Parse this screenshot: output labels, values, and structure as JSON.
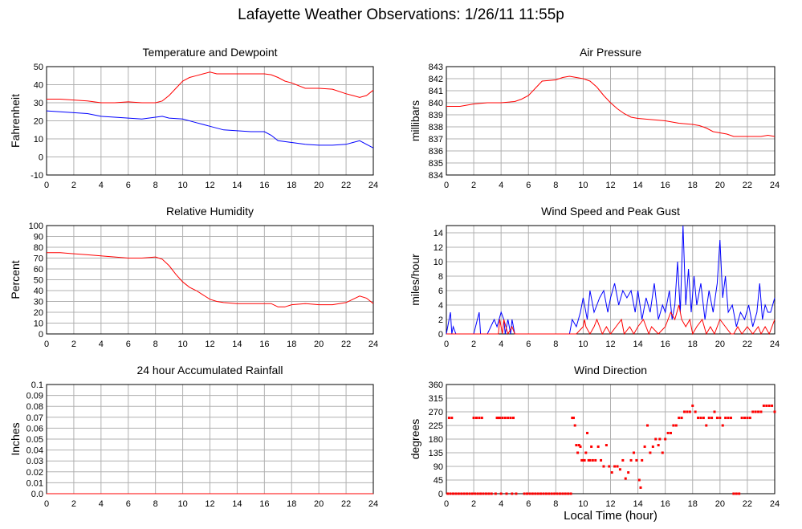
{
  "title": "Lafayette Weather Observations: 1/26/11 11:55p",
  "xlabel": "Local Time (hour)",
  "colors": {
    "red": "#ff0000",
    "blue": "#0000ff",
    "grid": "#b0b0b0"
  },
  "chart_data": [
    {
      "id": "temp",
      "type": "line",
      "title": "Temperature and Dewpoint",
      "ylabel": "Fahrenheit",
      "xlim": [
        0,
        24
      ],
      "ylim": [
        -10,
        50
      ],
      "xticks": [
        0,
        2,
        4,
        6,
        8,
        10,
        12,
        14,
        16,
        18,
        20,
        22,
        24
      ],
      "yticks": [
        -10,
        0,
        10,
        20,
        30,
        40,
        50
      ],
      "grid": true,
      "series": [
        {
          "color": "#ff0000",
          "x": [
            0,
            1,
            2,
            3,
            4,
            5,
            6,
            7,
            8,
            8.5,
            9,
            9.5,
            10,
            10.5,
            11,
            11.5,
            12,
            12.5,
            13,
            14,
            15,
            16,
            16.5,
            17,
            17.5,
            18,
            19,
            20,
            21,
            22,
            22.5,
            23,
            23.5,
            24
          ],
          "y": [
            32,
            32,
            31.5,
            31,
            30,
            30,
            30.5,
            30,
            30,
            31,
            34,
            38,
            42,
            44,
            45,
            46,
            47,
            46,
            46,
            46,
            46,
            46,
            45.5,
            44,
            42,
            41,
            38,
            38,
            37.5,
            35,
            34,
            33,
            34,
            37
          ]
        },
        {
          "color": "#0000ff",
          "x": [
            0,
            1,
            2,
            3,
            4,
            5,
            6,
            7,
            8,
            8.5,
            9,
            10,
            11,
            12,
            13,
            14,
            15,
            16,
            16.5,
            17,
            18,
            19,
            20,
            21,
            22,
            22.5,
            23,
            23.5,
            24
          ],
          "y": [
            25.5,
            25,
            24.5,
            24,
            22.5,
            22,
            21.5,
            21,
            22,
            22.5,
            21.5,
            21,
            19,
            17,
            15,
            14.5,
            14,
            14,
            12,
            9,
            8,
            7,
            6.5,
            6.5,
            7,
            8,
            9,
            7,
            5
          ]
        }
      ]
    },
    {
      "id": "pressure",
      "type": "line",
      "title": "Air Pressure",
      "ylabel": "millibars",
      "xlim": [
        0,
        24
      ],
      "ylim": [
        834,
        843
      ],
      "xticks": [
        0,
        2,
        4,
        6,
        8,
        10,
        12,
        14,
        16,
        18,
        20,
        22,
        24
      ],
      "yticks": [
        834,
        835,
        836,
        837,
        838,
        839,
        840,
        841,
        842,
        843
      ],
      "grid": true,
      "series": [
        {
          "color": "#ff0000",
          "x": [
            0,
            1,
            2,
            3,
            4,
            5,
            5.5,
            6,
            6.5,
            7,
            8,
            8.5,
            9,
            9.5,
            10,
            10.5,
            11,
            11.5,
            12,
            12.5,
            13,
            13.5,
            14,
            15,
            16,
            17,
            18,
            18.5,
            19,
            19.5,
            20,
            20.5,
            21,
            22,
            23,
            23.5,
            24
          ],
          "y": [
            839.7,
            839.7,
            839.9,
            840,
            840,
            840.1,
            840.3,
            840.6,
            841.2,
            841.8,
            841.9,
            842.1,
            842.2,
            842.1,
            842,
            841.8,
            841.3,
            840.6,
            840,
            839.5,
            839.1,
            838.8,
            838.7,
            838.6,
            838.5,
            838.3,
            838.2,
            838.1,
            837.9,
            837.6,
            837.5,
            837.4,
            837.2,
            837.2,
            837.2,
            837.3,
            837.2
          ]
        }
      ]
    },
    {
      "id": "humidity",
      "type": "line",
      "title": "Relative Humidity",
      "ylabel": "Percent",
      "xlim": [
        0,
        24
      ],
      "ylim": [
        0,
        100
      ],
      "xticks": [
        0,
        2,
        4,
        6,
        8,
        10,
        12,
        14,
        16,
        18,
        20,
        22,
        24
      ],
      "yticks": [
        0,
        10,
        20,
        30,
        40,
        50,
        60,
        70,
        80,
        90,
        100
      ],
      "grid": true,
      "series": [
        {
          "color": "#ff0000",
          "x": [
            0,
            1,
            2,
            3,
            4,
            5,
            6,
            7,
            8,
            8.5,
            9,
            9.5,
            10,
            10.5,
            11,
            11.5,
            12,
            12.5,
            13,
            14,
            15,
            16,
            16.5,
            17,
            17.5,
            18,
            19,
            20,
            21,
            22,
            22.5,
            23,
            23.5,
            24
          ],
          "y": [
            75,
            75,
            74,
            73,
            72,
            71,
            70,
            70,
            71,
            69,
            63,
            55,
            48,
            43,
            40,
            36,
            32,
            30,
            29,
            28,
            28,
            28,
            28,
            25,
            25,
            27,
            28,
            27,
            27,
            29,
            32,
            35,
            33,
            28
          ]
        }
      ]
    },
    {
      "id": "wind",
      "type": "line",
      "title": "Wind Speed and Peak Gust",
      "ylabel": "miles/hour",
      "xlim": [
        0,
        24
      ],
      "ylim": [
        0,
        15
      ],
      "xticks": [
        0,
        2,
        4,
        6,
        8,
        10,
        12,
        14,
        16,
        18,
        20,
        22,
        24
      ],
      "yticks": [
        0,
        2,
        4,
        6,
        8,
        10,
        12,
        14
      ],
      "grid": true,
      "series": [
        {
          "color": "#0000ff",
          "x": [
            0,
            0.3,
            0.4,
            0.5,
            0.7,
            1,
            2,
            2.4,
            2.5,
            2.6,
            3,
            3.5,
            3.7,
            4,
            4.2,
            4.3,
            4.5,
            4.7,
            4.8,
            5,
            5.5,
            6,
            7,
            8,
            9,
            9.2,
            9.5,
            9.8,
            10,
            10.3,
            10.5,
            10.8,
            11,
            11.2,
            11.5,
            11.8,
            12,
            12.3,
            12.6,
            12.9,
            13.2,
            13.5,
            13.8,
            14,
            14.3,
            14.6,
            14.9,
            15.2,
            15.5,
            15.8,
            16,
            16.3,
            16.5,
            16.7,
            16.9,
            17.1,
            17.3,
            17.5,
            17.7,
            17.9,
            18.1,
            18.3,
            18.6,
            18.9,
            19.2,
            19.5,
            19.8,
            20,
            20.2,
            20.4,
            20.6,
            20.9,
            21.2,
            21.5,
            21.8,
            22.1,
            22.4,
            22.7,
            22.9,
            23.1,
            23.3,
            23.5,
            23.7,
            24
          ],
          "y": [
            0,
            3,
            0,
            1,
            0,
            0,
            0,
            3,
            0,
            0,
            0,
            2,
            1,
            3,
            2,
            0,
            2,
            0,
            2,
            0,
            0,
            0,
            0,
            0,
            0,
            2,
            1,
            3,
            5,
            2,
            6,
            3,
            4,
            5,
            6,
            3,
            5,
            7,
            4,
            6,
            5,
            6,
            3,
            6,
            2,
            5,
            3,
            7,
            2,
            4,
            3,
            6,
            2,
            4,
            10,
            3,
            15,
            4,
            9,
            3,
            8,
            4,
            7,
            2,
            6,
            3,
            7,
            13,
            5,
            8,
            3,
            4,
            1,
            3,
            2,
            4,
            1,
            3,
            7,
            2,
            4,
            3,
            3,
            5
          ]
        },
        {
          "color": "#ff0000",
          "x": [
            0,
            3.8,
            3.9,
            4,
            4.1,
            4.2,
            4.5,
            4.8,
            5,
            9.5,
            10,
            10.1,
            10.2,
            10.5,
            10.8,
            11,
            11.4,
            11.7,
            12,
            12.4,
            12.8,
            13,
            13.4,
            13.7,
            14,
            14.4,
            14.8,
            15,
            15.5,
            16,
            16.4,
            16.7,
            17,
            17.2,
            17.5,
            17.8,
            18,
            18.3,
            18.7,
            19,
            19.3,
            19.6,
            20,
            20.4,
            20.8,
            21,
            21.3,
            21.6,
            22,
            22.4,
            22.8,
            23,
            23.3,
            23.6,
            24
          ],
          "y": [
            0,
            0,
            2,
            1,
            0,
            2,
            0,
            1,
            0,
            0,
            1,
            2,
            1,
            0,
            1,
            2,
            0,
            1,
            0,
            1,
            2,
            0,
            1,
            0,
            1,
            2,
            0,
            1,
            0,
            1,
            3,
            2,
            4,
            2,
            1,
            2,
            0,
            1,
            2,
            0,
            1,
            0,
            2,
            1,
            0,
            0,
            1,
            0,
            1,
            0,
            1,
            0,
            1,
            0,
            2
          ]
        }
      ]
    },
    {
      "id": "rain",
      "type": "line",
      "title": "24 hour Accumulated Rainfall",
      "ylabel": "Inches",
      "xlim": [
        0,
        24
      ],
      "ylim": [
        0,
        0.1
      ],
      "xticks": [
        0,
        2,
        4,
        6,
        8,
        10,
        12,
        14,
        16,
        18,
        20,
        22,
        24
      ],
      "yticks": [
        "0.0",
        "0.01",
        "0.02",
        "0.03",
        "0.04",
        "0.05",
        "0.06",
        "0.07",
        "0.08",
        "0.09",
        "0.1"
      ],
      "grid": true,
      "series": [
        {
          "color": "#ff0000",
          "x": [
            0,
            24
          ],
          "y": [
            0,
            0
          ]
        }
      ]
    },
    {
      "id": "direction",
      "type": "scatter",
      "title": "Wind Direction",
      "ylabel": "degrees",
      "xlim": [
        0,
        24
      ],
      "ylim": [
        0,
        360
      ],
      "xticks": [
        0,
        2,
        4,
        6,
        8,
        10,
        12,
        14,
        16,
        18,
        20,
        22,
        24
      ],
      "yticks": [
        0,
        45,
        90,
        135,
        180,
        225,
        270,
        315,
        360
      ],
      "grid": true,
      "series": [
        {
          "color": "#ff0000",
          "x": [
            0.2,
            0.4,
            0.1,
            0.3,
            0.5,
            0.7,
            0.9,
            1.1,
            1.3,
            1.5,
            1.7,
            1.9,
            2.1,
            2.0,
            2.2,
            2.4,
            2.6,
            2.3,
            2.5,
            2.7,
            2.9,
            3.1,
            3.3,
            3.6,
            3.8,
            3.7,
            3.9,
            4.1,
            4.3,
            4.5,
            4.7,
            4.9,
            4.0,
            4.4,
            4.8,
            5.1,
            5.7,
            5.9,
            6.1,
            6.3,
            6.5,
            6.7,
            6.9,
            7.1,
            7.3,
            7.5,
            7.7,
            7.9,
            8.1,
            8.3,
            8.5,
            8.7,
            8.9,
            9.1,
            9.2,
            9.3,
            9.4,
            9.5,
            9.6,
            9.7,
            9.8,
            9.9,
            10.0,
            10.1,
            10.2,
            10.3,
            10.4,
            10.5,
            10.6,
            10.7,
            10.9,
            11.1,
            11.3,
            11.5,
            11.7,
            11.9,
            12.1,
            12.3,
            12.5,
            12.7,
            12.9,
            13.1,
            13.3,
            13.5,
            13.7,
            13.9,
            14.1,
            14.2,
            14.3,
            14.5,
            14.7,
            14.9,
            15.1,
            15.3,
            15.5,
            15.6,
            15.8,
            16.0,
            16.2,
            16.4,
            16.6,
            16.8,
            17.0,
            17.2,
            17.4,
            17.6,
            17.8,
            18.0,
            18.2,
            18.4,
            18.6,
            18.8,
            19.0,
            19.2,
            19.4,
            19.6,
            19.8,
            20.0,
            20.2,
            20.4,
            20.6,
            20.8,
            21.0,
            21.2,
            21.4,
            21.6,
            21.8,
            22.0,
            22.2,
            22.4,
            22.6,
            22.8,
            23.0,
            23.2,
            23.4,
            23.6,
            23.8,
            24.0
          ],
          "y": [
            250,
            250,
            0,
            0,
            0,
            0,
            0,
            0,
            0,
            0,
            0,
            0,
            0,
            250,
            250,
            250,
            250,
            0,
            0,
            0,
            0,
            0,
            0,
            0,
            250,
            250,
            250,
            250,
            250,
            250,
            250,
            250,
            0,
            0,
            0,
            0,
            0,
            0,
            0,
            0,
            0,
            0,
            0,
            0,
            0,
            0,
            0,
            0,
            0,
            0,
            0,
            0,
            0,
            0,
            250,
            250,
            225,
            160,
            135,
            160,
            155,
            110,
            110,
            110,
            135,
            200,
            110,
            110,
            155,
            110,
            110,
            155,
            110,
            90,
            160,
            90,
            70,
            90,
            90,
            80,
            110,
            50,
            70,
            110,
            135,
            110,
            45,
            20,
            110,
            155,
            225,
            135,
            155,
            180,
            160,
            180,
            135,
            180,
            200,
            200,
            225,
            225,
            250,
            250,
            270,
            270,
            270,
            290,
            270,
            250,
            250,
            250,
            225,
            250,
            250,
            270,
            250,
            250,
            225,
            250,
            250,
            250,
            0,
            0,
            0,
            250,
            250,
            250,
            250,
            270,
            270,
            270,
            270,
            290,
            290,
            290,
            290,
            270
          ]
        }
      ]
    }
  ]
}
